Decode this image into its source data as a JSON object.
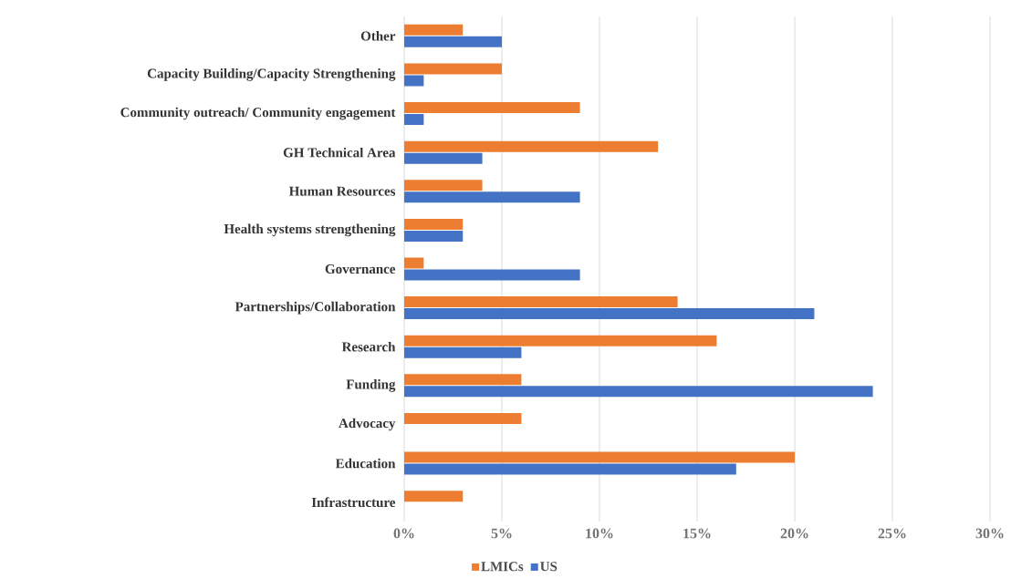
{
  "chart_data": {
    "type": "bar",
    "orientation": "horizontal",
    "categories": [
      "Other",
      "Capacity Building/Capacity Strengthening",
      "Community outreach/ Community engagement",
      "GH Technical Area",
      "Human Resources",
      "Health systems strengthening",
      "Governance",
      "Partnerships/Collaboration",
      "Research",
      "Funding",
      "Advocacy",
      "Education",
      "Infrastructure"
    ],
    "series": [
      {
        "name": "LMICs",
        "color": "#ed7d31",
        "values": [
          3,
          5,
          9,
          13,
          4,
          3,
          1,
          14,
          16,
          6,
          6,
          20,
          3
        ]
      },
      {
        "name": "US",
        "color": "#4472c4",
        "values": [
          5,
          1,
          1,
          4,
          9,
          3,
          9,
          21,
          6,
          24,
          0,
          17,
          0
        ]
      }
    ],
    "xlim": [
      0,
      30
    ],
    "xticks": [
      {
        "value": 0,
        "label": "0%"
      },
      {
        "value": 5,
        "label": "5%"
      },
      {
        "value": 10,
        "label": "10%"
      },
      {
        "value": 15,
        "label": "15%"
      },
      {
        "value": 20,
        "label": "20%"
      },
      {
        "value": 25,
        "label": "25%"
      },
      {
        "value": 30,
        "label": "30%"
      }
    ],
    "grid": "x",
    "legend": "bottom"
  }
}
